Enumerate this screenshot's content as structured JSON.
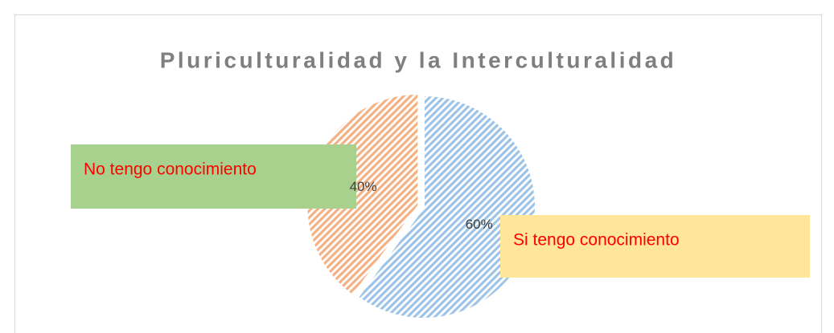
{
  "chart_data": {
    "type": "pie",
    "title": "Pluriculturalidad y la Interculturalidad",
    "categories": [
      "Si tengo conocimiento",
      "No tengo conocimiento"
    ],
    "values": [
      60,
      40
    ],
    "value_labels": [
      "60%",
      "40%"
    ],
    "colors": [
      "#9dc3e6",
      "#f4b183"
    ]
  }
}
